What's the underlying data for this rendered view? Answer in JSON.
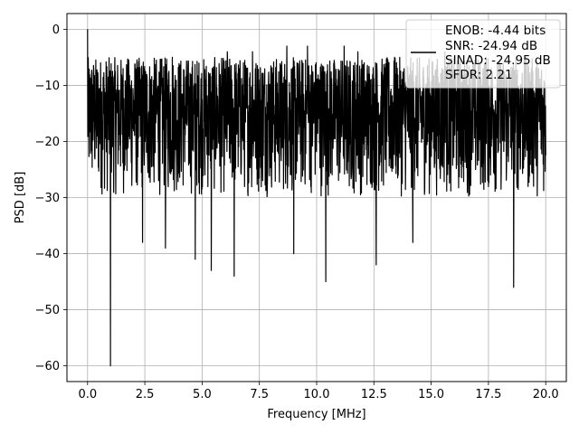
{
  "chart_data": {
    "type": "line",
    "title": "",
    "xlabel": "Frequency [MHz]",
    "ylabel": "PSD [dB]",
    "xlim": [
      -0.9,
      20.9
    ],
    "ylim": [
      -62.8,
      2.8
    ],
    "xticks": [
      0.0,
      2.5,
      5.0,
      7.5,
      10.0,
      12.5,
      15.0,
      17.5,
      20.0
    ],
    "xtick_labels": [
      "0.0",
      "2.5",
      "5.0",
      "7.5",
      "10.0",
      "12.5",
      "15.0",
      "17.5",
      "20.0"
    ],
    "yticks": [
      0,
      -10,
      -20,
      -30,
      -40,
      -50,
      -60
    ],
    "ytick_labels": [
      "0",
      "−10",
      "−20",
      "−30",
      "−40",
      "−50",
      "−60"
    ],
    "grid": true,
    "legend_position": "top-right",
    "series": [
      {
        "color": "#000000",
        "x_start": 0.0,
        "x_end": 20.0,
        "points": 2000,
        "typical_range_db": [
          -30,
          -5
        ],
        "peaks_db": [
          {
            "x": 0.0,
            "y": 0
          },
          {
            "x": 1.0,
            "y": -60
          },
          {
            "x": 10.4,
            "y": -45
          },
          {
            "x": 18.6,
            "y": -46
          },
          {
            "x": 6.4,
            "y": -44
          },
          {
            "x": 12.6,
            "y": -42
          },
          {
            "x": 4.7,
            "y": -41
          },
          {
            "x": 5.4,
            "y": -43
          },
          {
            "x": 9.0,
            "y": -40
          },
          {
            "x": 14.2,
            "y": -38
          },
          {
            "x": 2.4,
            "y": -38
          },
          {
            "x": 3.4,
            "y": -39
          },
          {
            "x": 8.7,
            "y": -3
          },
          {
            "x": 11.2,
            "y": -3
          },
          {
            "x": 1.8,
            "y": -6
          },
          {
            "x": 3.7,
            "y": -5
          },
          {
            "x": 6.1,
            "y": -4
          },
          {
            "x": 7.2,
            "y": -4
          },
          {
            "x": 9.6,
            "y": -3
          },
          {
            "x": 11.8,
            "y": -4
          },
          {
            "x": 13.4,
            "y": -5
          },
          {
            "x": 15.6,
            "y": -4
          },
          {
            "x": 17.4,
            "y": -5
          }
        ]
      }
    ],
    "legend_lines": [
      "ENOB: -4.44 bits",
      "SNR: -24.94 dB",
      "SINAD: -24.95 dB",
      "SFDR: 2.21"
    ]
  }
}
